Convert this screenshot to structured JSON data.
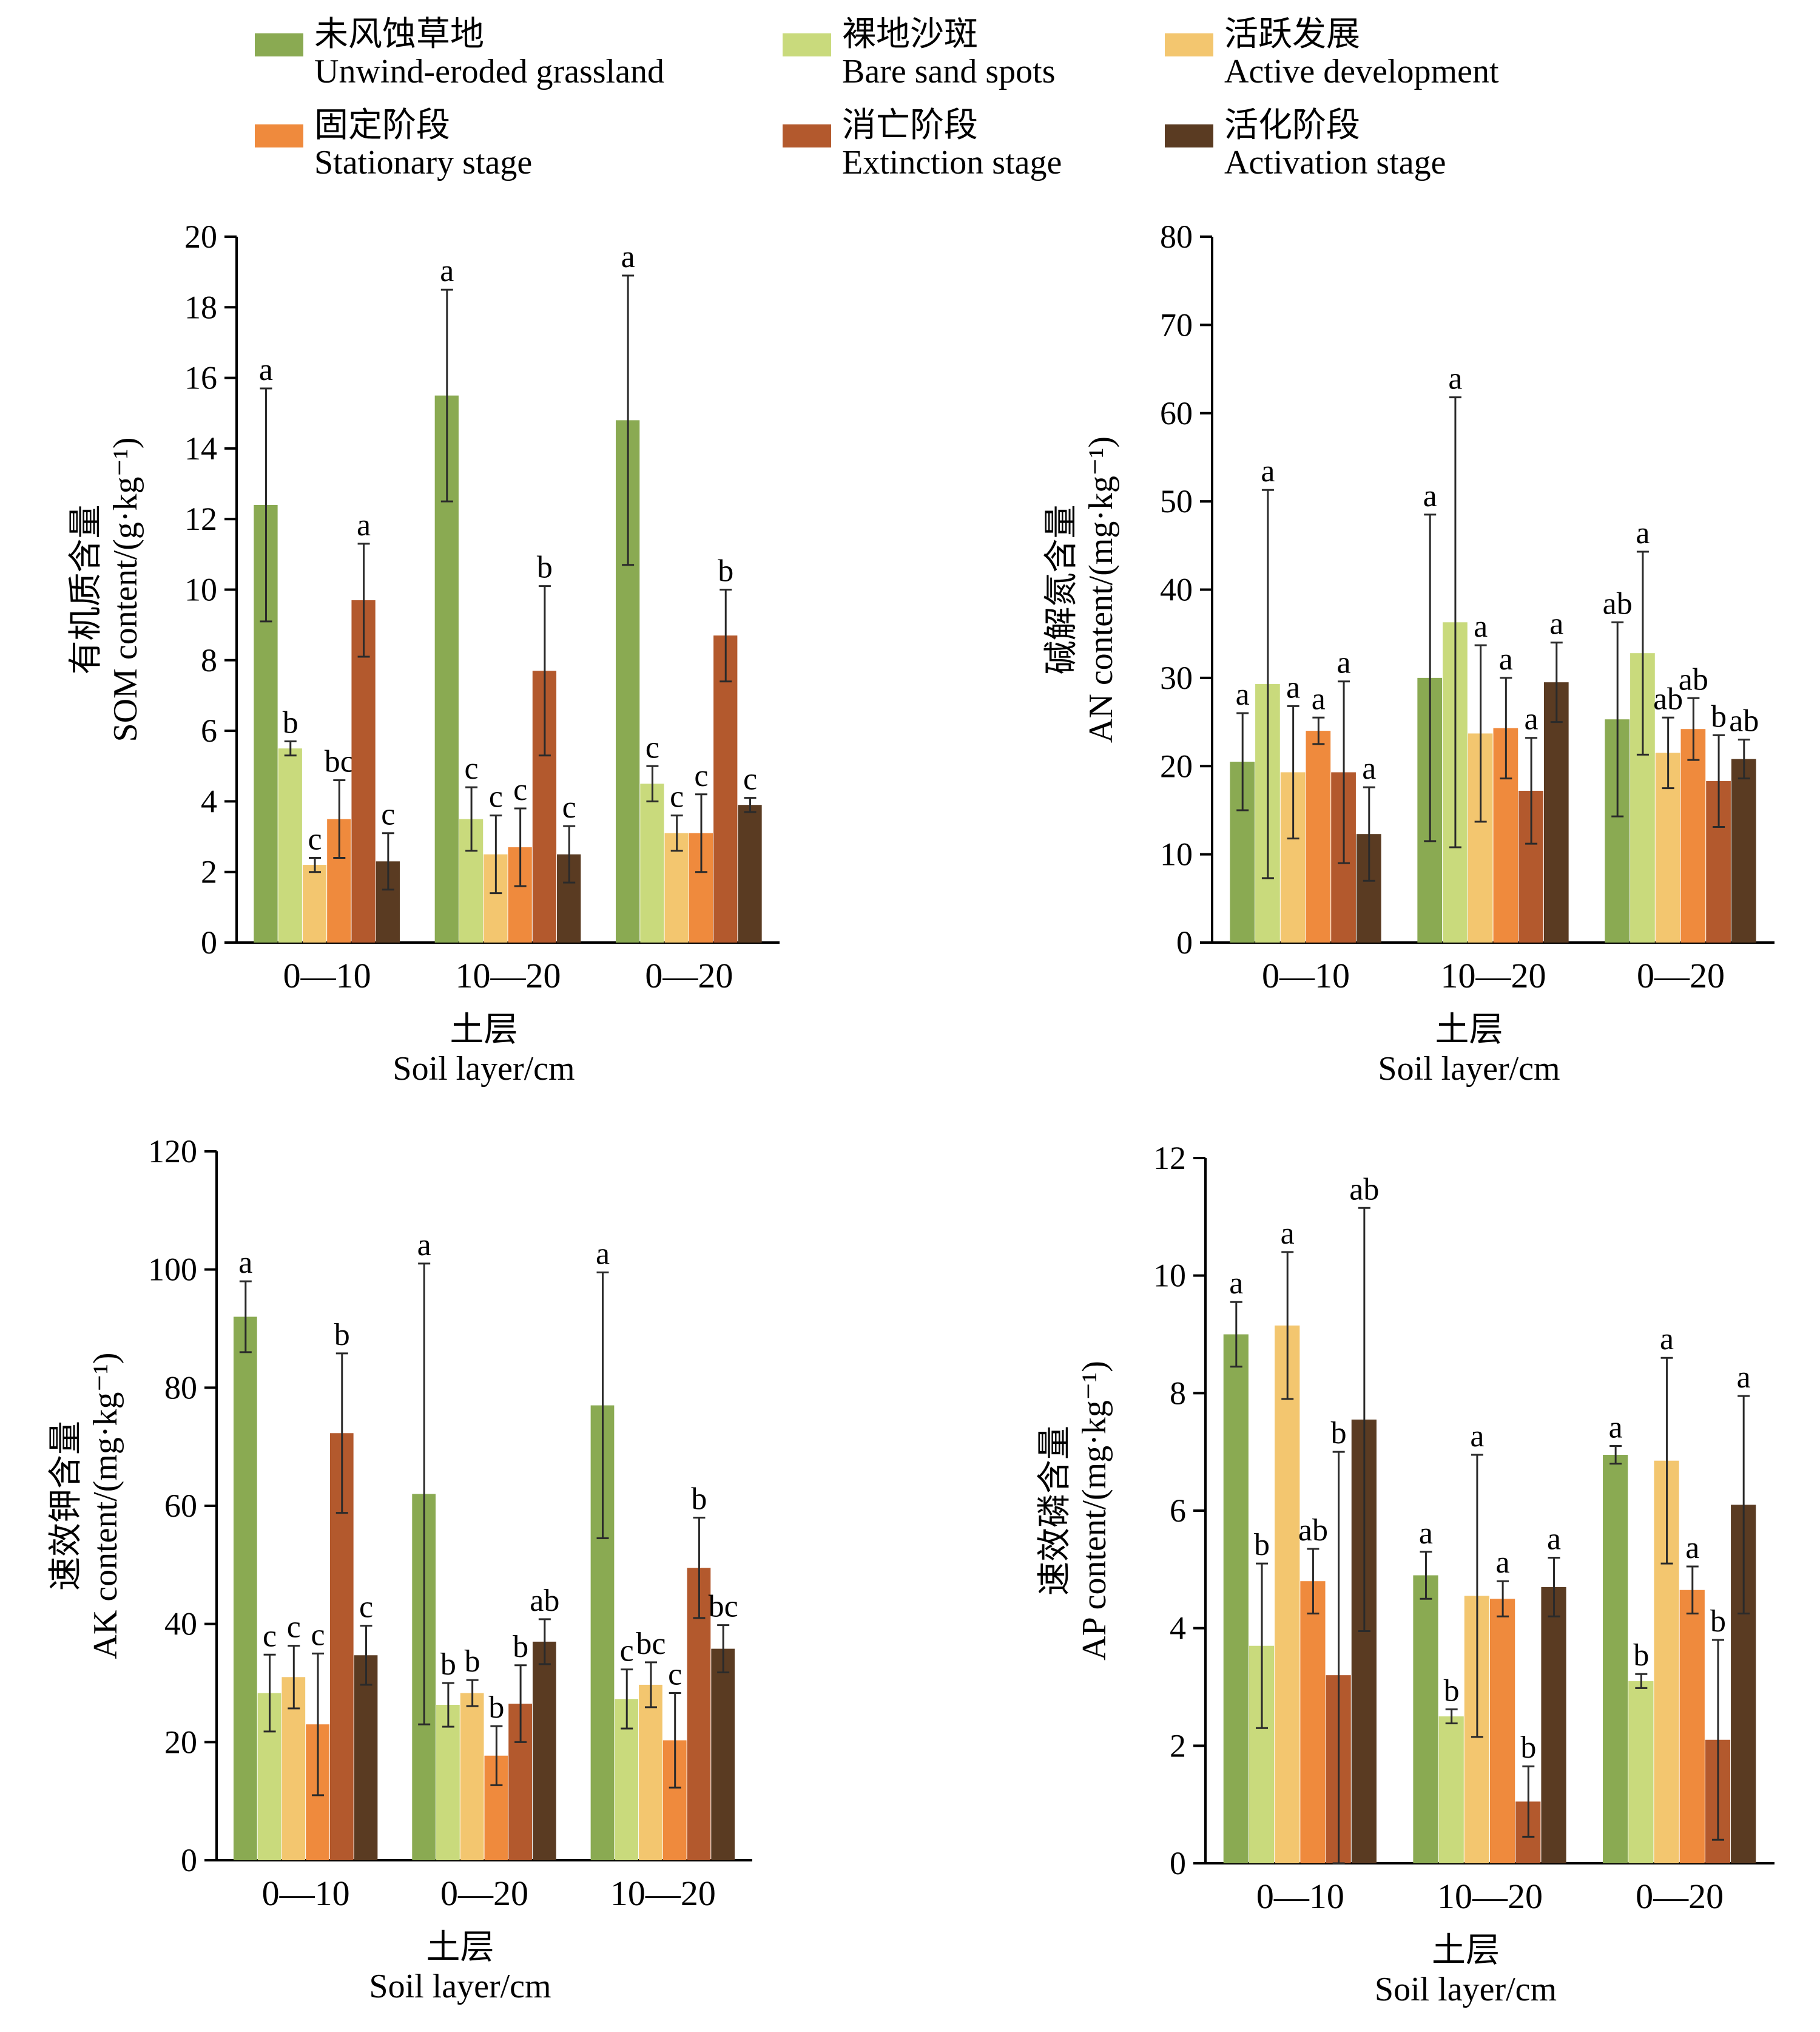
{
  "legend": [
    {
      "zh": "未风蚀草地",
      "en": "Unwind-eroded grassland",
      "color": "#8aaa52"
    },
    {
      "zh": "裸地沙斑",
      "en": "Bare sand spots",
      "color": "#c9da7c"
    },
    {
      "zh": "活跃发展",
      "en": "Active development",
      "color": "#f3c66f"
    },
    {
      "zh": "固定阶段",
      "en": "Stationary stage",
      "color": "#ef8a3d"
    },
    {
      "zh": "消亡阶段",
      "en": "Extinction stage",
      "color": "#b3592d"
    },
    {
      "zh": "活化阶段",
      "en": "Activation stage",
      "color": "#5a3b22"
    }
  ],
  "chart_data": [
    {
      "type": "bar",
      "categories": [
        "0—10",
        "10—20",
        "0—20"
      ],
      "ylim": [
        0,
        20
      ],
      "yticks": [
        0,
        2,
        4,
        6,
        8,
        10,
        12,
        14,
        16,
        18,
        20
      ],
      "ylabel_zh": "有机质含量",
      "ylabel_en": "SOM content/(g·kg⁻¹)",
      "xlabel_zh": "土层",
      "xlabel_en": "Soil layer/cm",
      "series": [
        {
          "name": "Unwind-eroded grassland",
          "values": [
            12.4,
            15.5,
            14.8
          ],
          "errors": [
            3.3,
            3.0,
            4.1
          ],
          "letters": [
            "a",
            "a",
            "a"
          ]
        },
        {
          "name": "Bare sand spots",
          "values": [
            5.5,
            3.5,
            4.5
          ],
          "errors": [
            0.2,
            0.9,
            0.5
          ],
          "letters": [
            "b",
            "c",
            "c"
          ]
        },
        {
          "name": "Active development",
          "values": [
            2.2,
            2.5,
            3.1
          ],
          "errors": [
            0.2,
            1.1,
            0.5
          ],
          "letters": [
            "c",
            "c",
            "c"
          ]
        },
        {
          "name": "Stationary stage",
          "values": [
            3.5,
            2.7,
            3.1
          ],
          "errors": [
            1.1,
            1.1,
            1.1
          ],
          "letters": [
            "bc",
            "c",
            "c"
          ]
        },
        {
          "name": "Extinction stage",
          "values": [
            9.7,
            7.7,
            8.7
          ],
          "errors": [
            1.6,
            2.4,
            1.3
          ],
          "letters": [
            "a",
            "b",
            "b"
          ]
        },
        {
          "name": "Activation stage",
          "values": [
            2.3,
            2.5,
            3.9
          ],
          "errors": [
            0.8,
            0.8,
            0.2
          ],
          "letters": [
            "c",
            "c",
            "c"
          ]
        }
      ]
    },
    {
      "type": "bar",
      "categories": [
        "0—10",
        "10—20",
        "0—20"
      ],
      "ylim": [
        0,
        80
      ],
      "yticks": [
        0,
        10,
        20,
        30,
        40,
        50,
        60,
        70,
        80
      ],
      "ylabel_zh": "碱解氮含量",
      "ylabel_en": "AN content/(mg·kg⁻¹)",
      "xlabel_zh": "土层",
      "xlabel_en": "Soil layer/cm",
      "series": [
        {
          "name": "Unwind-eroded grassland",
          "values": [
            20.5,
            30.0,
            25.3
          ],
          "errors": [
            5.5,
            18.5,
            11.0
          ],
          "letters": [
            "a",
            "a",
            "ab"
          ]
        },
        {
          "name": "Bare sand spots",
          "values": [
            29.3,
            36.3,
            32.8
          ],
          "errors": [
            22.0,
            25.5,
            11.5
          ],
          "letters": [
            "a",
            "a",
            "a"
          ]
        },
        {
          "name": "Active development",
          "values": [
            19.3,
            23.7,
            21.5
          ],
          "errors": [
            7.5,
            10.0,
            4.0
          ],
          "letters": [
            "a",
            "a",
            "ab"
          ]
        },
        {
          "name": "Stationary stage",
          "values": [
            24.0,
            24.3,
            24.2
          ],
          "errors": [
            1.5,
            5.7,
            3.5
          ],
          "letters": [
            "a",
            "a",
            "ab"
          ]
        },
        {
          "name": "Extinction stage",
          "values": [
            19.3,
            17.2,
            18.3
          ],
          "errors": [
            10.3,
            6.0,
            5.2
          ],
          "letters": [
            "a",
            "a",
            "b"
          ]
        },
        {
          "name": "Activation stage",
          "values": [
            12.3,
            29.5,
            20.8
          ],
          "errors": [
            5.3,
            4.5,
            2.2
          ],
          "letters": [
            "a",
            "a",
            "ab"
          ]
        }
      ]
    },
    {
      "type": "bar",
      "categories": [
        "0—10",
        "0—20",
        "10—20"
      ],
      "ylim": [
        0,
        120
      ],
      "yticks": [
        0,
        20,
        40,
        60,
        80,
        100,
        120
      ],
      "ylabel_zh": "速效钾含量",
      "ylabel_en": "AK content/(mg·kg⁻¹)",
      "xlabel_zh": "土层",
      "xlabel_en": "Soil layer/cm",
      "series": [
        {
          "name": "Unwind-eroded grassland",
          "values": [
            92,
            62,
            77
          ],
          "errors": [
            6,
            39,
            22.5
          ],
          "letters": [
            "a",
            "a",
            "a"
          ]
        },
        {
          "name": "Bare sand spots",
          "values": [
            28.3,
            26.3,
            27.3
          ],
          "errors": [
            6.5,
            3.7,
            5.0
          ],
          "letters": [
            "c",
            "b",
            "c"
          ]
        },
        {
          "name": "Active development",
          "values": [
            31.0,
            28.3,
            29.7
          ],
          "errors": [
            5.3,
            2.2,
            3.8
          ],
          "letters": [
            "c",
            "b",
            "bc"
          ]
        },
        {
          "name": "Stationary stage",
          "values": [
            23.0,
            17.7,
            20.3
          ],
          "errors": [
            12.0,
            5.0,
            8.0
          ],
          "letters": [
            "c",
            "b",
            "c"
          ]
        },
        {
          "name": "Extinction stage",
          "values": [
            72.3,
            26.5,
            49.5
          ],
          "errors": [
            13.5,
            6.5,
            8.5
          ],
          "letters": [
            "b",
            "b",
            "b"
          ]
        },
        {
          "name": "Activation stage",
          "values": [
            34.7,
            37.0,
            35.8
          ],
          "errors": [
            5.0,
            3.8,
            4.0
          ],
          "letters": [
            "c",
            "ab",
            "bc"
          ]
        }
      ]
    },
    {
      "type": "bar",
      "categories": [
        "0—10",
        "10—20",
        "0—20"
      ],
      "ylim": [
        0,
        12
      ],
      "yticks": [
        0,
        2,
        4,
        6,
        8,
        10,
        12
      ],
      "ylabel_zh": "速效磷含量",
      "ylabel_en": "AP content/(mg·kg⁻¹)",
      "xlabel_zh": "土层",
      "xlabel_en": "Soil layer/cm",
      "series": [
        {
          "name": "Unwind-eroded grassland",
          "values": [
            9.0,
            4.9,
            6.95
          ],
          "errors": [
            0.55,
            0.4,
            0.15
          ],
          "letters": [
            "a",
            "a",
            "a"
          ]
        },
        {
          "name": "Bare sand spots",
          "values": [
            3.7,
            2.5,
            3.1
          ],
          "errors": [
            1.4,
            0.12,
            0.12
          ],
          "letters": [
            "b",
            "b",
            "b"
          ]
        },
        {
          "name": "Active development",
          "values": [
            9.15,
            4.55,
            6.85
          ],
          "errors": [
            1.25,
            2.4,
            1.75
          ],
          "letters": [
            "a",
            "a",
            "a"
          ]
        },
        {
          "name": "Stationary stage",
          "values": [
            4.8,
            4.5,
            4.65
          ],
          "errors": [
            0.55,
            0.3,
            0.4
          ],
          "letters": [
            "ab",
            "a",
            "a"
          ]
        },
        {
          "name": "Extinction stage",
          "values": [
            3.2,
            1.05,
            2.1
          ],
          "errors": [
            3.8,
            0.6,
            1.7
          ],
          "letters": [
            "b",
            "b",
            "b"
          ]
        },
        {
          "name": "Activation stage",
          "values": [
            7.55,
            4.7,
            6.1
          ],
          "errors": [
            3.6,
            0.5,
            1.85
          ],
          "letters": [
            "ab",
            "a",
            "a"
          ]
        }
      ]
    }
  ]
}
